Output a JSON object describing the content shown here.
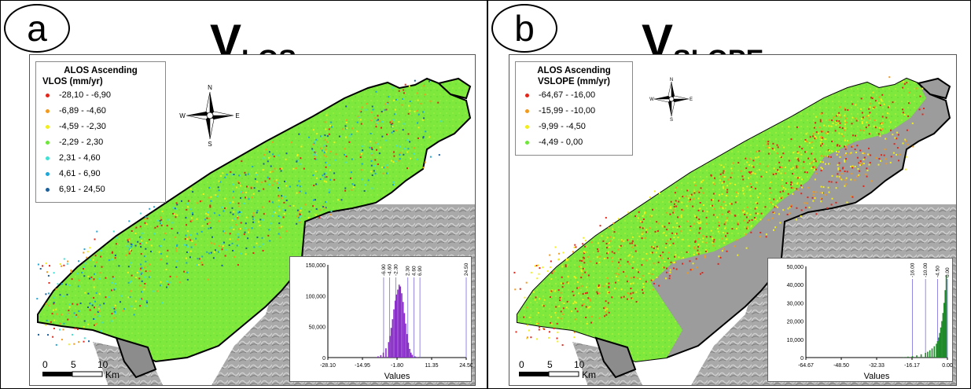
{
  "panel_a": {
    "letter": "a",
    "title_main": "V",
    "title_sub": "LOS",
    "legend": {
      "title_line1": "ALOS Ascending",
      "title_line2": "VLOS (mm/yr)",
      "items": [
        {
          "label": "-28,10 - -6,90",
          "color": "#e3261a"
        },
        {
          "label": "-6,89 - -4,60",
          "color": "#f29a1e"
        },
        {
          "label": "-4,59 - -2,30",
          "color": "#f2ee1b"
        },
        {
          "label": "-2,29 - 2,30",
          "color": "#6fe63a"
        },
        {
          "label": "2,31 - 4,60",
          "color": "#3fe0d6"
        },
        {
          "label": "4,61 - 6,90",
          "color": "#1da6d8"
        },
        {
          "label": "6,91 - 24,50",
          "color": "#1c5f9a"
        }
      ]
    },
    "compass": {
      "n": "N",
      "s": "S",
      "e": "E",
      "w": "W"
    },
    "scalebar": {
      "ticks": [
        "0",
        "5",
        "10"
      ],
      "unit": "Km"
    },
    "histogram": {
      "type": "bar",
      "xlabel": "Values",
      "x_ticks": [
        "-28.10",
        "-14.95",
        "-1.80",
        "11.35",
        "24.50"
      ],
      "x_range": [
        -28.1,
        24.5
      ],
      "y_ticks": [
        "150,000",
        "100,000",
        "50,000",
        "0"
      ],
      "y_max": 150000,
      "bar_color": "#8a2fc9",
      "break_labels": [
        "-6.90",
        "-4.60",
        "-2.30",
        "2.30",
        "4.60",
        "6.90",
        "24.50"
      ],
      "breaks": [
        -6.9,
        -4.6,
        -2.3,
        2.3,
        4.6,
        6.9,
        24.5
      ],
      "bins_x": [
        -9,
        -8,
        -7,
        -6,
        -5,
        -4.5,
        -4,
        -3.5,
        -3,
        -2.5,
        -2,
        -1.5,
        -1,
        -0.5,
        0,
        0.5,
        1,
        1.5,
        2,
        2.5,
        3,
        3.5,
        4,
        5,
        6
      ],
      "bins_y": [
        2000,
        4000,
        8000,
        15000,
        25000,
        35000,
        48000,
        62000,
        78000,
        92000,
        102000,
        110000,
        118000,
        115000,
        104000,
        90000,
        72000,
        55000,
        38000,
        24000,
        14000,
        8000,
        4500,
        2000,
        900
      ]
    }
  },
  "panel_b": {
    "letter": "b",
    "title_main": "V",
    "title_sub": "SLOPE",
    "legend": {
      "title_line1": "ALOS Ascending",
      "title_line2": "VSLOPE (mm/yr)",
      "items": [
        {
          "label": "-64,67 - -16,00",
          "color": "#e3261a"
        },
        {
          "label": "-15,99 - -10,00",
          "color": "#f29a1e"
        },
        {
          "label": "-9,99 - -4,50",
          "color": "#f2ee1b"
        },
        {
          "label": "-4,49 - 0,00",
          "color": "#6fe63a"
        }
      ]
    },
    "compass": {
      "n": "N",
      "s": "S",
      "e": "E",
      "w": "W"
    },
    "scalebar": {
      "ticks": [
        "0",
        "5",
        "10"
      ],
      "unit": "Km"
    },
    "histogram": {
      "type": "bar",
      "xlabel": "Values",
      "x_ticks": [
        "-64.67",
        "-48.50",
        "-32.33",
        "-16.17",
        "0.00"
      ],
      "x_range": [
        -64.67,
        0
      ],
      "y_ticks": [
        "50,000",
        "40,000",
        "30,000",
        "20,000",
        "10,000",
        "0"
      ],
      "y_max": 50000,
      "bar_color": "#1f8a2a",
      "break_labels": [
        "-16.00",
        "-10.00",
        "-4.50",
        "0.00"
      ],
      "breaks": [
        -16,
        -10,
        -4.5,
        0
      ],
      "bins_x": [
        -20,
        -18,
        -16,
        -14,
        -12,
        -10,
        -9,
        -8,
        -7,
        -6,
        -5,
        -4.5,
        -4,
        -3.5,
        -3,
        -2.5,
        -2,
        -1.5,
        -1,
        -0.5
      ],
      "bins_y": [
        300,
        500,
        800,
        1200,
        1800,
        2600,
        3200,
        4000,
        5000,
        6200,
        7600,
        9000,
        11000,
        13500,
        16500,
        20000,
        24500,
        30000,
        37000,
        45000
      ]
    }
  }
}
